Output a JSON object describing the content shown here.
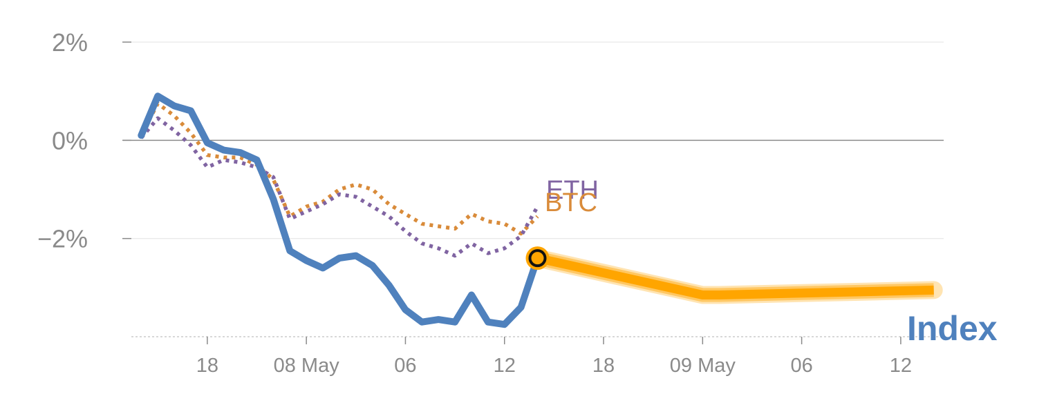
{
  "chart_data": {
    "type": "line",
    "ylim": [
      -4,
      2
    ],
    "yticks": [
      {
        "value": 2,
        "label": "2%"
      },
      {
        "value": 0,
        "label": "0%"
      },
      {
        "value": -2,
        "label": "−2%"
      }
    ],
    "xticks": [
      {
        "t": 4,
        "label": "18"
      },
      {
        "t": 10,
        "label": "08 May"
      },
      {
        "t": 16,
        "label": "06"
      },
      {
        "t": 22,
        "label": "12"
      },
      {
        "t": 28,
        "label": "18"
      },
      {
        "t": 34,
        "label": "09 May"
      },
      {
        "t": 40,
        "label": "06"
      },
      {
        "t": 46,
        "label": "12"
      }
    ],
    "xrange": [
      -0.6,
      48.6
    ],
    "series": [
      {
        "name": "Index",
        "color": "#4f81bd",
        "style": "solid",
        "x": [
          0,
          1,
          2,
          3,
          4,
          5,
          6,
          7,
          8,
          9,
          10,
          11,
          12,
          13,
          14,
          15,
          16,
          17,
          18,
          19,
          20,
          21,
          22,
          23,
          24
        ],
        "y": [
          0.1,
          0.9,
          0.7,
          0.6,
          -0.05,
          -0.2,
          -0.25,
          -0.4,
          -1.2,
          -2.25,
          -2.45,
          -2.6,
          -2.4,
          -2.35,
          -2.55,
          -2.95,
          -3.45,
          -3.7,
          -3.65,
          -3.7,
          -3.15,
          -3.7,
          -3.75,
          -3.4,
          -2.4
        ]
      },
      {
        "name": "BTC",
        "color": "#d98b3a",
        "style": "dotted",
        "x": [
          0,
          1,
          2,
          3,
          4,
          5,
          6,
          7,
          8,
          9,
          10,
          11,
          12,
          13,
          14,
          15,
          16,
          17,
          18,
          19,
          20,
          21,
          22,
          23,
          24
        ],
        "y": [
          0.1,
          0.75,
          0.5,
          0.15,
          -0.3,
          -0.35,
          -0.35,
          -0.5,
          -0.8,
          -1.55,
          -1.35,
          -1.25,
          -1.0,
          -0.9,
          -1.0,
          -1.3,
          -1.5,
          -1.7,
          -1.75,
          -1.8,
          -1.5,
          -1.65,
          -1.7,
          -1.9,
          -1.55
        ]
      },
      {
        "name": "ETH",
        "color": "#8064a2",
        "style": "dotted",
        "x": [
          0,
          1,
          2,
          3,
          4,
          5,
          6,
          7,
          8,
          9,
          10,
          11,
          12,
          13,
          14,
          15,
          16,
          17,
          18,
          19,
          20,
          21,
          22,
          23,
          24
        ],
        "y": [
          0.05,
          0.45,
          0.2,
          -0.1,
          -0.55,
          -0.4,
          -0.45,
          -0.55,
          -0.75,
          -1.6,
          -1.45,
          -1.3,
          -1.1,
          -1.15,
          -1.35,
          -1.55,
          -1.85,
          -2.1,
          -2.2,
          -2.35,
          -2.1,
          -2.3,
          -2.2,
          -1.95,
          -1.35
        ]
      },
      {
        "name": "",
        "color": "#ffa500",
        "style": "band",
        "x": [
          24,
          34,
          35,
          48
        ],
        "y": [
          -2.4,
          -3.15,
          -3.15,
          -3.05
        ]
      }
    ],
    "marker": {
      "x": 24,
      "y": -2.4,
      "color": "#ffa500"
    },
    "labels": {
      "index": "Index",
      "btc": "BTC",
      "eth": "ETH"
    },
    "grid": true,
    "legend": "inline labels at line ends"
  }
}
